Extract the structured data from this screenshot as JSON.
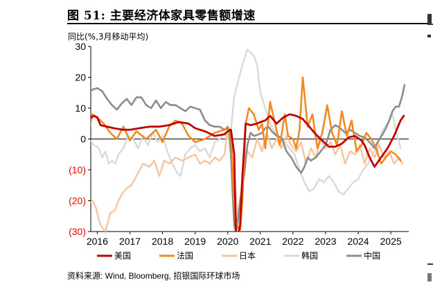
{
  "title": "图 51: 主要经济体家具零售额增速",
  "source": "资料来源: Wind, Bloomberg, 招银国际环球市场",
  "colors": {
    "us": "#c00000",
    "fr": "#f08a1e",
    "jp": "#f7c49d",
    "kr": "#d9d9d9",
    "cn": "#8c8c8c",
    "negative_label": "#e00000",
    "axis": "#000000"
  },
  "chart_data": {
    "type": "line",
    "ylabel": "同比(%,3月移动平均)",
    "ylim": [
      -30,
      30
    ],
    "yticks": [
      30,
      20,
      10,
      0,
      -10,
      -20,
      -30
    ],
    "ytick_labels": [
      "30",
      "20",
      "10",
      "0",
      "(10)",
      "(20)",
      "(30)"
    ],
    "xlim": [
      2015.8,
      2025.55
    ],
    "xticks": [
      2016,
      2017,
      2018,
      2019,
      2020,
      2021,
      2022,
      2023,
      2024,
      2025
    ],
    "xtick_labels": [
      "2016",
      "2017",
      "2018",
      "2019",
      "2020",
      "2021",
      "2022",
      "2023",
      "2024",
      "2025"
    ],
    "legend": [
      "美国",
      "法国",
      "日本",
      "韩国",
      "中国"
    ],
    "series": [
      {
        "name": "美国",
        "key": "us",
        "x": [
          2015.75,
          2015.9,
          2016.0,
          2016.1,
          2016.3,
          2016.5,
          2016.8,
          2017.0,
          2017.3,
          2017.6,
          2017.9,
          2018.2,
          2018.5,
          2018.8,
          2019.0,
          2019.3,
          2019.6,
          2019.9,
          2020.0,
          2020.1,
          2020.2,
          2020.25,
          2020.3,
          2020.38,
          2020.45,
          2020.55,
          2020.7,
          2020.9,
          2021.0,
          2021.15,
          2021.3,
          2021.5,
          2021.7,
          2021.9,
          2022.1,
          2022.3,
          2022.5,
          2022.7,
          2022.9,
          2023.1,
          2023.3,
          2023.5,
          2023.7,
          2023.9,
          2024.1,
          2024.2,
          2024.35,
          2024.5,
          2024.7,
          2024.9,
          2025.1,
          2025.3,
          2025.4
        ],
        "values": [
          6.5,
          7.5,
          7,
          4.5,
          4,
          3.5,
          3,
          3,
          3.5,
          4,
          4,
          4.5,
          5.5,
          5,
          3.5,
          2.5,
          1,
          1.5,
          2.5,
          3,
          -5,
          -30,
          -32,
          -28,
          -12,
          5,
          4.5,
          5,
          5.5,
          6,
          7.5,
          5,
          7,
          8,
          7.5,
          6.5,
          4,
          1.5,
          -0.5,
          -2.5,
          -2.5,
          -1.5,
          0.5,
          1,
          -0.5,
          -2,
          -6,
          -9,
          -6,
          -3,
          1,
          6,
          7.5
        ]
      },
      {
        "name": "法国",
        "key": "fr",
        "x": [
          2015.75,
          2015.85,
          2016.0,
          2016.2,
          2016.4,
          2016.6,
          2016.8,
          2017.0,
          2017.2,
          2017.5,
          2017.8,
          2018.0,
          2018.2,
          2018.4,
          2018.6,
          2018.8,
          2019.0,
          2019.3,
          2019.6,
          2019.9,
          2020.0,
          2020.1,
          2020.2,
          2020.3,
          2020.38,
          2020.45,
          2020.55,
          2020.65,
          2020.8,
          2020.95,
          2021.05,
          2021.15,
          2021.3,
          2021.45,
          2021.6,
          2021.75,
          2021.85,
          2022.0,
          2022.1,
          2022.2,
          2022.3,
          2022.45,
          2022.6,
          2022.75,
          2022.9,
          2023.05,
          2023.2,
          2023.35,
          2023.5,
          2023.65,
          2023.8,
          2023.95,
          2024.1,
          2024.25,
          2024.4,
          2024.55,
          2024.7,
          2024.85,
          2025.0,
          2025.15,
          2025.3
        ],
        "values": [
          3,
          8,
          7,
          5,
          2,
          0,
          4,
          -0.5,
          2.5,
          0,
          3,
          -1,
          4,
          6,
          5,
          1,
          -1,
          0,
          2,
          3,
          4,
          2,
          -22,
          -28,
          -30,
          -20,
          5,
          10,
          8,
          3,
          5,
          -3,
          12,
          5,
          -2,
          8,
          1,
          0,
          -3,
          3,
          20,
          4,
          8,
          -3,
          2,
          11,
          2,
          -2,
          9,
          1,
          6,
          -4,
          -2,
          2,
          0,
          -3,
          -8,
          -6,
          -4,
          -5,
          -7
        ]
      },
      {
        "name": "日本",
        "key": "jp",
        "x": [
          2015.75,
          2015.85,
          2015.95,
          2016.1,
          2016.25,
          2016.4,
          2016.55,
          2016.65,
          2016.75,
          2016.9,
          2017.05,
          2017.2,
          2017.4,
          2017.6,
          2017.75,
          2017.9,
          2018.05,
          2018.2,
          2018.4,
          2018.6,
          2018.8,
          2019.0,
          2019.15,
          2019.3,
          2019.45,
          2019.6,
          2019.75,
          2019.9,
          2020.0,
          2020.1,
          2020.2,
          2020.3,
          2020.4,
          2020.5,
          2020.6,
          2020.75,
          2020.9,
          2021.05,
          2021.2,
          2021.35,
          2021.5,
          2021.65,
          2021.8,
          2021.95,
          2022.1,
          2022.25,
          2022.4,
          2022.55,
          2022.7,
          2022.85,
          2023.0,
          2023.15,
          2023.3,
          2023.45,
          2023.6,
          2023.75,
          2023.9,
          2024.05,
          2024.2,
          2024.35,
          2024.5,
          2024.65,
          2024.8,
          2024.95,
          2025.1,
          2025.25,
          2025.35
        ],
        "values": [
          -21,
          -20,
          -22,
          -28,
          -30,
          -24,
          -23,
          -20,
          -18,
          -16,
          -15,
          -12,
          -8,
          -9,
          -7,
          -12,
          -7,
          -8,
          -6,
          -7,
          -6,
          -5,
          -8,
          -7,
          -8,
          -6,
          -7,
          -5,
          4,
          -6,
          -12,
          -25,
          -18,
          -6,
          -4,
          -6,
          0,
          -4,
          2,
          -3,
          0,
          -3,
          1,
          -2,
          -4,
          -1,
          -8,
          -3,
          -6,
          0,
          -3,
          -1,
          -5,
          -2,
          -8,
          -4,
          -5,
          -2,
          -8,
          -3,
          -6,
          -2,
          -6,
          -4,
          -8,
          -6,
          -8
        ]
      },
      {
        "name": "韩国",
        "key": "kr",
        "x": [
          2015.75,
          2015.9,
          2016.05,
          2016.15,
          2016.25,
          2016.35,
          2016.45,
          2016.55,
          2016.65,
          2016.8,
          2016.95,
          2017.1,
          2017.25,
          2017.4,
          2017.55,
          2017.7,
          2017.85,
          2018.0,
          2018.15,
          2018.3,
          2018.45,
          2018.55,
          2018.7,
          2018.85,
          2019.0,
          2019.15,
          2019.3,
          2019.45,
          2019.6,
          2019.75,
          2019.9,
          2020.0,
          2020.1,
          2020.2,
          2020.3,
          2020.45,
          2020.6,
          2020.7,
          2020.8,
          2020.9,
          2021.0,
          2021.15,
          2021.3,
          2021.45,
          2021.6,
          2021.75,
          2021.9,
          2022.05,
          2022.2,
          2022.35,
          2022.5,
          2022.65,
          2022.8,
          2022.95,
          2023.1,
          2023.25,
          2023.4,
          2023.55,
          2023.7,
          2023.85,
          2024.0,
          2024.15,
          2024.3,
          2024.45,
          2024.6,
          2024.75,
          2024.9,
          2025.05,
          2025.2,
          2025.3
        ],
        "values": [
          0,
          -2,
          -3,
          -6,
          -4,
          -8,
          -7,
          -8,
          -5,
          -3,
          1,
          0,
          -3,
          1,
          -2,
          2,
          -1,
          1,
          -4,
          -8,
          -11,
          -12,
          -5,
          -3,
          -2,
          -4,
          -3,
          -6,
          -1,
          0,
          2,
          0,
          3,
          14,
          18,
          24,
          29,
          28,
          27,
          24,
          15,
          10,
          5,
          2,
          0,
          -1,
          -3,
          -5,
          -10,
          -14,
          -17,
          -16,
          -13,
          -14,
          -12,
          -14,
          -17,
          -18,
          -16,
          -14,
          -13,
          -10,
          -8,
          -5,
          -2,
          3,
          5,
          8,
          1,
          -3
        ]
      },
      {
        "name": "中国",
        "key": "cn",
        "x": [
          2015.75,
          2015.85,
          2016.0,
          2016.15,
          2016.3,
          2016.45,
          2016.6,
          2016.75,
          2016.9,
          2017.05,
          2017.2,
          2017.35,
          2017.5,
          2017.65,
          2017.8,
          2017.95,
          2018.1,
          2018.25,
          2018.4,
          2018.55,
          2018.7,
          2018.85,
          2019.0,
          2019.15,
          2019.3,
          2019.45,
          2019.6,
          2019.75,
          2019.9,
          2020.0,
          2020.05,
          2020.1,
          2020.15,
          2020.2,
          2020.25,
          2020.3,
          2020.38,
          2020.5,
          2020.6,
          2020.7,
          2020.8,
          2020.95,
          2021.05,
          2021.15,
          2021.25,
          2021.35,
          2021.5,
          2021.65,
          2021.8,
          2021.95,
          2022.1,
          2022.25,
          2022.35,
          2022.45,
          2022.55,
          2022.7,
          2022.85,
          2023.0,
          2023.15,
          2023.3,
          2023.45,
          2023.6,
          2023.75,
          2023.9,
          2024.05,
          2024.2,
          2024.35,
          2024.5,
          2024.65,
          2024.75,
          2024.85,
          2024.95,
          2025.05,
          2025.15,
          2025.25,
          2025.35,
          2025.42
        ],
        "values": [
          15,
          16,
          16.5,
          15.5,
          13,
          11,
          9.5,
          11.5,
          13,
          11,
          13.5,
          13.5,
          11,
          10,
          12.5,
          10,
          12,
          11,
          11,
          10,
          9,
          10.5,
          10,
          9.5,
          6,
          4.5,
          4,
          4,
          3,
          3.5,
          2,
          -5,
          -18,
          -28,
          -30,
          -28,
          -20,
          -12,
          -2,
          2,
          1,
          1.5,
          2,
          3.5,
          4,
          2.5,
          1,
          0.5,
          -4,
          -6,
          -9,
          -11,
          -9,
          -6,
          -7,
          -6,
          -4,
          -2,
          3,
          4.5,
          3.5,
          2,
          3,
          2,
          1,
          0.5,
          -1,
          -3,
          0,
          1.5,
          3.5,
          6,
          9,
          10.5,
          10.5,
          14,
          17.5
        ]
      }
    ]
  }
}
